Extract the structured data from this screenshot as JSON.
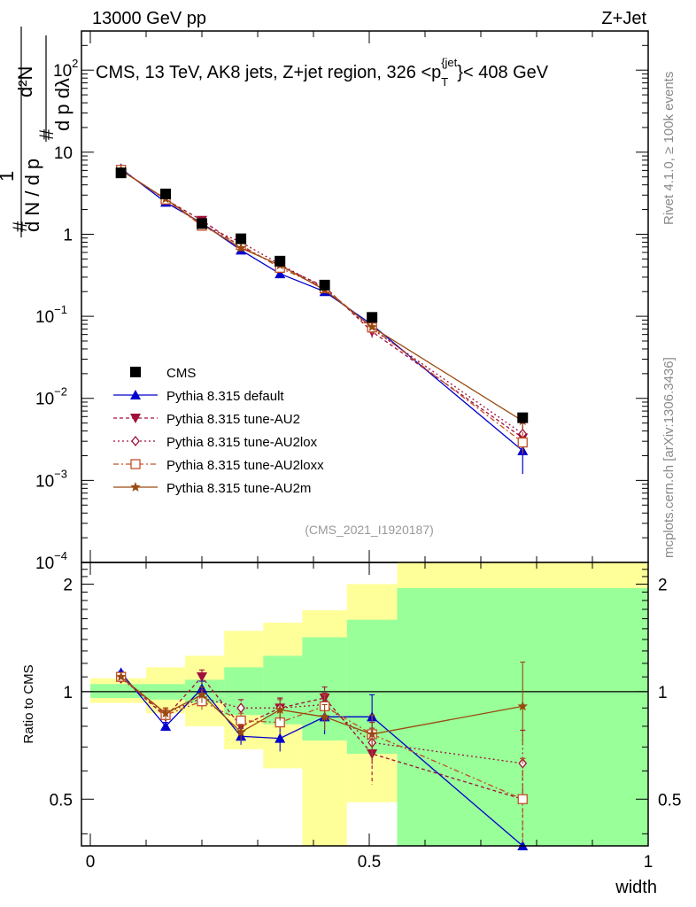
{
  "header": {
    "left": "13000 GeV pp",
    "right": "Z+Jet"
  },
  "side_labels": {
    "rivet": "Rivet 4.1.0, ≥ 100k events",
    "mcplots": "mcplots.cern.ch [arXiv:1306.3436]"
  },
  "chart_data": [
    {
      "type": "line",
      "panel": "main",
      "title": "CMS, 13 TeV, AK8 jets, Z+jet region, 326 <p_T^{jet}< 408 GeV",
      "title_parts": {
        "main": "CMS, 13 TeV, AK8 jets, Z+jet region, 326 <p",
        "sub": "T",
        "sup": "{jet",
        "rest": "}< 408 GeV"
      },
      "ylabel": "1/(dN/dp_T) d²N/(dp_T dλ)",
      "ylabel_parts": {
        "top": "d²N",
        "bottom": "d N / d p",
        "one": "1",
        "hash": "#",
        "den": "d p  dλ",
        "T": "T"
      },
      "yscale": "log",
      "ylim": [
        0.0001,
        300
      ],
      "xlim": [
        0,
        1
      ],
      "y_tick_labels": [
        {
          "value": 100,
          "base": "10",
          "exp": "2"
        },
        {
          "value": 10,
          "base": "10",
          "exp": ""
        },
        {
          "value": 1,
          "base": "1",
          "exp": ""
        },
        {
          "value": 0.1,
          "base": "10",
          "exp": "−1"
        },
        {
          "value": 0.01,
          "base": "10",
          "exp": "−2"
        },
        {
          "value": 0.001,
          "base": "10",
          "exp": "−3"
        },
        {
          "value": 0.0001,
          "base": "10",
          "exp": "−4"
        }
      ],
      "watermark": "(CMS_2021_I1920187)",
      "data_series": {
        "name": "CMS",
        "x": [
          0.055,
          0.135,
          0.2,
          0.27,
          0.34,
          0.42,
          0.505,
          0.775
        ],
        "y": [
          5.6,
          3.1,
          1.35,
          0.88,
          0.47,
          0.24,
          0.097,
          0.0058
        ]
      },
      "series": [
        {
          "name": "Pythia 8.315 default",
          "color": "#0000cc",
          "dash": "",
          "marker": "triangle-up",
          "x": [
            0.055,
            0.135,
            0.2,
            0.27,
            0.34,
            0.42,
            0.505,
            0.775
          ],
          "y": [
            6.3,
            2.45,
            1.37,
            0.64,
            0.33,
            0.2,
            0.079,
            0.0023
          ],
          "err_low": [
            0,
            0,
            0,
            0,
            0,
            0.01,
            0,
            0.0011
          ],
          "err_high": [
            0,
            0,
            0,
            0,
            0,
            0,
            0,
            0.0012
          ]
        },
        {
          "name": "Pythia 8.315 tune-AU2",
          "color": "#a0103a",
          "dash": "4,3",
          "marker": "triangle-down",
          "x": [
            0.055,
            0.135,
            0.2,
            0.27,
            0.34,
            0.42,
            0.505,
            0.775
          ],
          "y": [
            6.1,
            2.65,
            1.48,
            0.7,
            0.41,
            0.23,
            0.065,
            0.0033
          ],
          "err_low": [
            0,
            0,
            0,
            0,
            0,
            0,
            0.01,
            0.0008
          ],
          "err_high": [
            0,
            0,
            0,
            0,
            0,
            0,
            0,
            0.001
          ]
        },
        {
          "name": "Pythia 8.315 tune-AU2lox",
          "color": "#a0103a",
          "dash": "2,3",
          "marker": "diamond-open",
          "x": [
            0.055,
            0.135,
            0.2,
            0.27,
            0.34,
            0.42,
            0.505,
            0.775
          ],
          "y": [
            6.0,
            2.7,
            1.3,
            0.8,
            0.43,
            0.22,
            0.07,
            0.0037
          ],
          "err_low": [
            0,
            0,
            0,
            0,
            0,
            0,
            0.01,
            0.0008
          ],
          "err_high": [
            0,
            0,
            0,
            0,
            0,
            0,
            0,
            0.001
          ]
        },
        {
          "name": "Pythia 8.315 tune-AU2loxx",
          "color": "#c05028",
          "dash": "6,3,2,3",
          "marker": "square-open",
          "x": [
            0.055,
            0.135,
            0.2,
            0.27,
            0.34,
            0.42,
            0.505,
            0.775
          ],
          "y": [
            6.1,
            2.65,
            1.27,
            0.74,
            0.39,
            0.22,
            0.073,
            0.0029
          ],
          "err_low": [
            0,
            0,
            0,
            0,
            0,
            0,
            0.012,
            0.0008
          ],
          "err_high": [
            0,
            0,
            0,
            0,
            0,
            0,
            0,
            0.001
          ]
        },
        {
          "name": "Pythia 8.315 tune-AU2m",
          "color": "#9a4a10",
          "dash": "",
          "marker": "star",
          "x": [
            0.055,
            0.135,
            0.2,
            0.27,
            0.34,
            0.42,
            0.505,
            0.775
          ],
          "y": [
            6.0,
            2.7,
            1.32,
            0.68,
            0.42,
            0.21,
            0.074,
            0.0053
          ],
          "err_low": [
            0,
            0,
            0,
            0,
            0,
            0,
            0,
            0.0012
          ],
          "err_high": [
            0,
            0,
            0,
            0,
            0,
            0,
            0,
            0.0012
          ]
        }
      ],
      "legend": {
        "position": "bottom-left",
        "entries": [
          "CMS",
          "Pythia 8.315 default",
          "Pythia 8.315 tune-AU2",
          "Pythia 8.315 tune-AU2lox",
          "Pythia 8.315 tune-AU2loxx",
          "Pythia 8.315 tune-AU2m"
        ]
      }
    },
    {
      "type": "line",
      "panel": "ratio",
      "ylabel": "Ratio to CMS",
      "xlabel": "width",
      "yscale": "log",
      "ylim": [
        0.37,
        2.3
      ],
      "xlim": [
        0,
        1
      ],
      "y_tick_labels": [
        "0.5",
        "1",
        "2"
      ],
      "y_tick_values": [
        0.5,
        1,
        2
      ],
      "x_tick_labels": [
        "0",
        "0.5",
        "1"
      ],
      "x_tick_values": [
        0,
        0.5,
        1
      ],
      "reference_line": 1,
      "bands": {
        "bins": [
          0,
          0.1,
          0.1,
          0.17,
          0.17,
          0.24,
          0.24,
          0.31,
          0.31,
          0.38,
          0.38,
          0.46,
          0.46,
          0.55,
          0.55,
          1.0
        ],
        "bin_edges": [
          0,
          0.1,
          0.17,
          0.24,
          0.31,
          0.38,
          0.46,
          0.55,
          1.0
        ],
        "green_low": [
          0.96,
          0.95,
          0.93,
          0.86,
          0.81,
          0.73,
          0.67,
          0.37
        ],
        "green_high": [
          1.05,
          1.05,
          1.08,
          1.17,
          1.26,
          1.42,
          1.59,
          1.95
        ],
        "yellow_low": [
          0.93,
          0.87,
          0.8,
          0.69,
          0.61,
          0.37,
          0.49,
          0.37
        ],
        "yellow_high": [
          1.09,
          1.17,
          1.26,
          1.48,
          1.56,
          1.69,
          2.0,
          2.3
        ],
        "green_color": "#99ff99",
        "yellow_color": "#ffff99"
      },
      "series": [
        {
          "name": "Pythia 8.315 default",
          "x": [
            0.055,
            0.135,
            0.2,
            0.27,
            0.34,
            0.42,
            0.505,
            0.775
          ],
          "y": [
            1.13,
            0.8,
            1.02,
            0.75,
            0.74,
            0.85,
            0.85,
            0.37
          ],
          "err_low": [
            0.01,
            0.02,
            0.05,
            0.04,
            0.06,
            0.09,
            0.1,
            0.0
          ],
          "err_high": [
            0.01,
            0.02,
            0.05,
            0.04,
            0.06,
            0.09,
            0.13,
            0.0
          ]
        },
        {
          "name": "Pythia 8.315 tune-AU2",
          "x": [
            0.055,
            0.135,
            0.2,
            0.27,
            0.34,
            0.42,
            0.505,
            0.775
          ],
          "y": [
            1.1,
            0.85,
            1.1,
            0.8,
            0.9,
            0.96,
            0.67,
            0.5
          ],
          "err_low": [
            0.01,
            0.03,
            0.05,
            0.04,
            0.06,
            0.07,
            0.12,
            0.15
          ],
          "err_high": [
            0.01,
            0.03,
            0.05,
            0.04,
            0.06,
            0.07,
            0.12,
            0.15
          ]
        },
        {
          "name": "Pythia 8.315 tune-AU2lox",
          "x": [
            0.055,
            0.135,
            0.2,
            0.27,
            0.34,
            0.42,
            0.505,
            0.775
          ],
          "y": [
            1.09,
            0.87,
            0.96,
            0.9,
            0.9,
            0.92,
            0.72,
            0.63
          ],
          "err_low": [
            0.01,
            0.03,
            0.05,
            0.05,
            0.06,
            0.07,
            0.1,
            0.15
          ],
          "err_high": [
            0.01,
            0.03,
            0.05,
            0.05,
            0.06,
            0.07,
            0.1,
            0.15
          ]
        },
        {
          "name": "Pythia 8.315 tune-AU2loxx",
          "x": [
            0.055,
            0.135,
            0.2,
            0.27,
            0.34,
            0.42,
            0.505,
            0.775
          ],
          "y": [
            1.1,
            0.86,
            0.94,
            0.83,
            0.82,
            0.91,
            0.76,
            0.5
          ],
          "err_low": [
            0.01,
            0.03,
            0.05,
            0.04,
            0.06,
            0.07,
            0.1,
            0.15
          ],
          "err_high": [
            0.01,
            0.03,
            0.05,
            0.04,
            0.06,
            0.07,
            0.1,
            0.15
          ]
        },
        {
          "name": "Pythia 8.315 tune-AU2m",
          "x": [
            0.055,
            0.135,
            0.2,
            0.27,
            0.34,
            0.42,
            0.505,
            0.775
          ],
          "y": [
            1.1,
            0.87,
            0.98,
            0.77,
            0.89,
            0.85,
            0.76,
            0.91
          ],
          "err_low": [
            0.01,
            0.03,
            0.05,
            0.04,
            0.06,
            0.07,
            0.1,
            0.2
          ],
          "err_high": [
            0.01,
            0.03,
            0.05,
            0.04,
            0.06,
            0.07,
            0.1,
            0.3
          ]
        }
      ]
    }
  ]
}
